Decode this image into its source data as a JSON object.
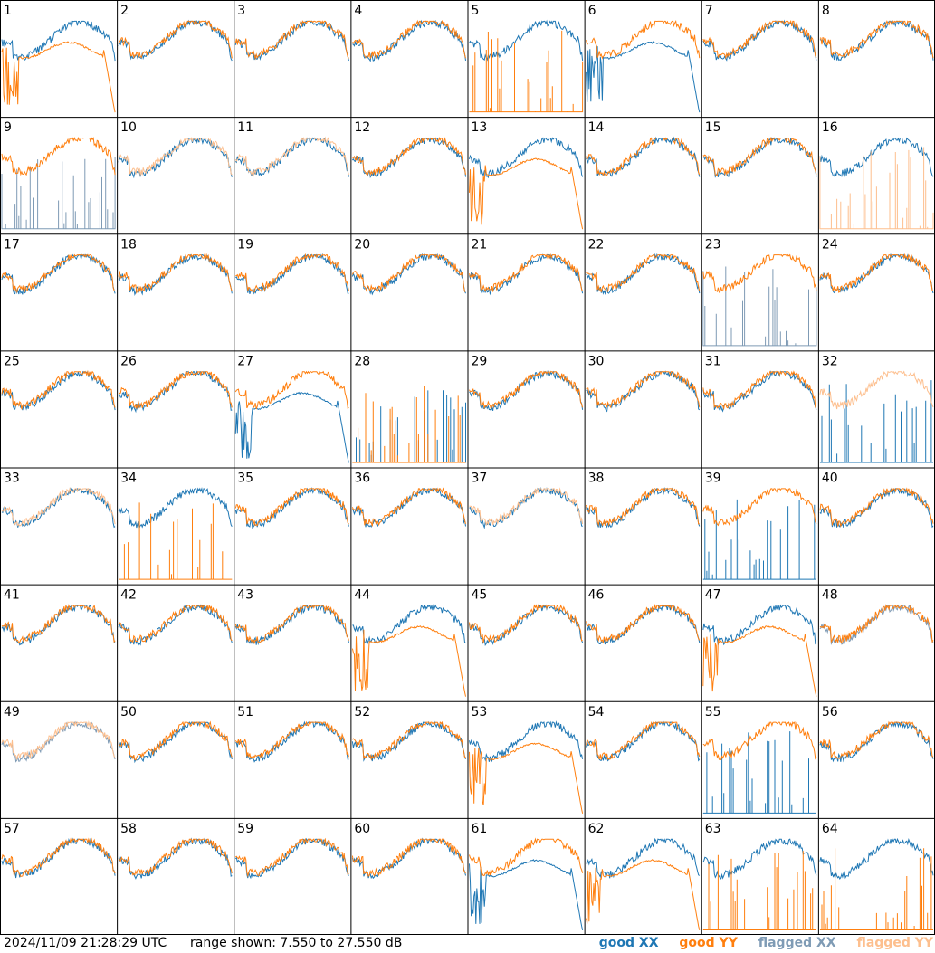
{
  "footer": {
    "timestamp": "2024/11/09 21:28:29 UTC",
    "range_text": "range shown: 7.550 to 27.550 dB"
  },
  "legend": {
    "good_xx": "good XX",
    "good_yy": "good YY",
    "flagged_xx": "flagged XX",
    "flagged_yy": "flagged YY"
  },
  "colors": {
    "good_xx": "#1f77b4",
    "good_yy": "#ff7f0e",
    "flagged_xx": "#7f9bb5",
    "flagged_yy": "#fdbf8e",
    "grid_lines": "#000000"
  },
  "chart_data": {
    "type": "line",
    "layout": "8x8 small multiples",
    "title": "",
    "xlabel": "",
    "ylabel": "",
    "ylim": [
      7.55,
      27.55
    ],
    "units": "dB",
    "panels": [
      {
        "id": "1",
        "xx": "good",
        "yy": "good",
        "yy_shape": "dropout"
      },
      {
        "id": "2",
        "xx": "good",
        "yy": "good"
      },
      {
        "id": "3",
        "xx": "good",
        "yy": "good"
      },
      {
        "id": "4",
        "xx": "good",
        "yy": "good"
      },
      {
        "id": "5",
        "xx": "good",
        "yy": "good",
        "yy_shape": "spikes"
      },
      {
        "id": "6",
        "xx": "good",
        "yy": "good",
        "xx_shape": "dropout"
      },
      {
        "id": "7",
        "xx": "good",
        "yy": "good"
      },
      {
        "id": "8",
        "xx": "good",
        "yy": "good"
      },
      {
        "id": "9",
        "xx": "flagged",
        "yy": "good",
        "xx_shape": "spikes"
      },
      {
        "id": "10",
        "xx": "good",
        "yy": "flagged"
      },
      {
        "id": "11",
        "xx": "good",
        "yy": "flagged"
      },
      {
        "id": "12",
        "xx": "good",
        "yy": "good"
      },
      {
        "id": "13",
        "xx": "good",
        "yy": "good",
        "yy_shape": "dropout"
      },
      {
        "id": "14",
        "xx": "good",
        "yy": "good"
      },
      {
        "id": "15",
        "xx": "good",
        "yy": "good"
      },
      {
        "id": "16",
        "xx": "good",
        "yy": "flagged",
        "yy_shape": "spikes"
      },
      {
        "id": "17",
        "xx": "good",
        "yy": "good"
      },
      {
        "id": "18",
        "xx": "good",
        "yy": "good"
      },
      {
        "id": "19",
        "xx": "good",
        "yy": "good"
      },
      {
        "id": "20",
        "xx": "good",
        "yy": "good"
      },
      {
        "id": "21",
        "xx": "good",
        "yy": "good"
      },
      {
        "id": "22",
        "xx": "good",
        "yy": "good"
      },
      {
        "id": "23",
        "xx": "flagged",
        "yy": "good",
        "xx_shape": "spikes"
      },
      {
        "id": "24",
        "xx": "good",
        "yy": "good"
      },
      {
        "id": "25",
        "xx": "good",
        "yy": "good"
      },
      {
        "id": "26",
        "xx": "good",
        "yy": "good"
      },
      {
        "id": "27",
        "xx": "good",
        "yy": "good",
        "xx_shape": "dropout"
      },
      {
        "id": "28",
        "xx": "good",
        "yy": "good",
        "xx_shape": "spikes",
        "yy_shape": "spikes"
      },
      {
        "id": "29",
        "xx": "good",
        "yy": "good"
      },
      {
        "id": "30",
        "xx": "good",
        "yy": "good"
      },
      {
        "id": "31",
        "xx": "good",
        "yy": "good"
      },
      {
        "id": "32",
        "xx": "good",
        "yy": "flagged",
        "xx_shape": "spikes"
      },
      {
        "id": "33",
        "xx": "good",
        "yy": "flagged"
      },
      {
        "id": "34",
        "xx": "good",
        "yy": "good",
        "yy_shape": "spikes"
      },
      {
        "id": "35",
        "xx": "good",
        "yy": "good"
      },
      {
        "id": "36",
        "xx": "good",
        "yy": "good"
      },
      {
        "id": "37",
        "xx": "good",
        "yy": "flagged"
      },
      {
        "id": "38",
        "xx": "good",
        "yy": "good"
      },
      {
        "id": "39",
        "xx": "good",
        "yy": "good",
        "xx_shape": "spikes"
      },
      {
        "id": "40",
        "xx": "good",
        "yy": "good"
      },
      {
        "id": "41",
        "xx": "good",
        "yy": "good"
      },
      {
        "id": "42",
        "xx": "good",
        "yy": "good"
      },
      {
        "id": "43",
        "xx": "good",
        "yy": "good"
      },
      {
        "id": "44",
        "xx": "good",
        "yy": "good",
        "yy_shape": "dropout"
      },
      {
        "id": "45",
        "xx": "good",
        "yy": "good"
      },
      {
        "id": "46",
        "xx": "good",
        "yy": "good"
      },
      {
        "id": "47",
        "xx": "good",
        "yy": "good",
        "yy_shape": "dropout"
      },
      {
        "id": "48",
        "xx": "flagged",
        "yy": "good"
      },
      {
        "id": "49",
        "xx": "flagged",
        "yy": "flagged"
      },
      {
        "id": "50",
        "xx": "good",
        "yy": "good"
      },
      {
        "id": "51",
        "xx": "good",
        "yy": "good"
      },
      {
        "id": "52",
        "xx": "good",
        "yy": "good"
      },
      {
        "id": "53",
        "xx": "good",
        "yy": "good",
        "yy_shape": "dropout"
      },
      {
        "id": "54",
        "xx": "good",
        "yy": "good"
      },
      {
        "id": "55",
        "xx": "good",
        "yy": "good",
        "xx_shape": "spikes"
      },
      {
        "id": "56",
        "xx": "good",
        "yy": "good"
      },
      {
        "id": "57",
        "xx": "good",
        "yy": "good"
      },
      {
        "id": "58",
        "xx": "good",
        "yy": "good"
      },
      {
        "id": "59",
        "xx": "good",
        "yy": "good"
      },
      {
        "id": "60",
        "xx": "good",
        "yy": "good"
      },
      {
        "id": "61",
        "xx": "good",
        "yy": "good",
        "xx_shape": "dropout"
      },
      {
        "id": "62",
        "xx": "good",
        "yy": "good",
        "yy_shape": "dropout"
      },
      {
        "id": "63",
        "xx": "good",
        "yy": "good",
        "yy_shape": "spikes"
      },
      {
        "id": "64",
        "xx": "good",
        "yy": "good",
        "yy_shape": "spikes"
      }
    ]
  }
}
